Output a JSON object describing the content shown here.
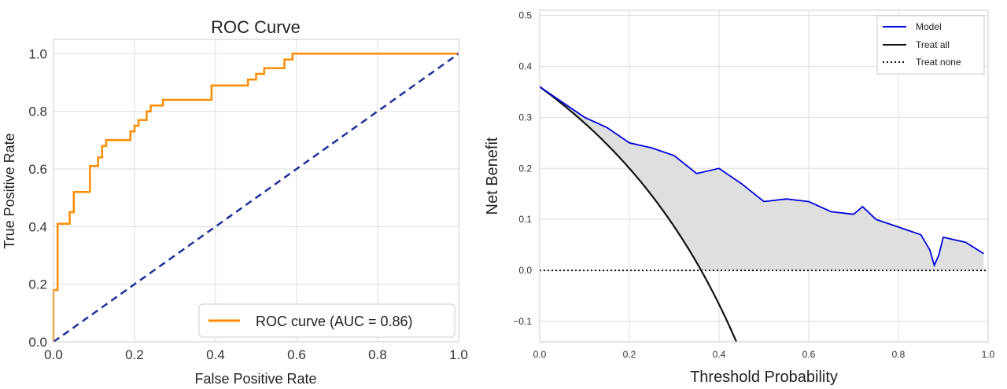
{
  "chart_data": [
    {
      "type": "line",
      "title": "ROC Curve",
      "xlabel": "False Positive Rate",
      "ylabel": "True Positive Rate",
      "xlim": [
        0,
        1
      ],
      "ylim": [
        0,
        1.05
      ],
      "xticks": [
        "0.0",
        "0.2",
        "0.4",
        "0.6",
        "0.8",
        "1.0"
      ],
      "yticks": [
        "0.0",
        "0.2",
        "0.4",
        "0.6",
        "0.8",
        "1.0"
      ],
      "grid": true,
      "legend_position": "bottom-right",
      "series": [
        {
          "name": "ROC curve (AUC = 0.86)",
          "color": "#ff8c00",
          "style": "solid",
          "x": [
            0,
            0,
            0.01,
            0.01,
            0.02,
            0.02,
            0.04,
            0.04,
            0.05,
            0.05,
            0.09,
            0.09,
            0.11,
            0.11,
            0.12,
            0.12,
            0.13,
            0.13,
            0.19,
            0.19,
            0.2,
            0.2,
            0.21,
            0.21,
            0.23,
            0.23,
            0.24,
            0.24,
            0.27,
            0.27,
            0.29,
            0.29,
            0.39,
            0.39,
            0.48,
            0.48,
            0.5,
            0.5,
            0.52,
            0.52,
            0.57,
            0.57,
            0.58,
            0.58,
            0.59,
            0.59,
            1.0
          ],
          "y": [
            0,
            0.18,
            0.18,
            0.41,
            0.41,
            0.41,
            0.41,
            0.45,
            0.45,
            0.52,
            0.52,
            0.61,
            0.61,
            0.64,
            0.64,
            0.68,
            0.68,
            0.7,
            0.7,
            0.73,
            0.73,
            0.75,
            0.75,
            0.77,
            0.77,
            0.8,
            0.8,
            0.82,
            0.82,
            0.84,
            0.84,
            0.84,
            0.84,
            0.89,
            0.89,
            0.91,
            0.91,
            0.93,
            0.93,
            0.95,
            0.95,
            0.98,
            0.98,
            0.98,
            0.98,
            1.0,
            1.0
          ]
        },
        {
          "name": "",
          "color": "#1f2f99",
          "style": "dashed",
          "x": [
            0,
            1
          ],
          "y": [
            0,
            1
          ]
        }
      ]
    },
    {
      "type": "line",
      "title": "",
      "xlabel": "Threshold Probability",
      "ylabel": "Net Benefit",
      "xlim": [
        0,
        1
      ],
      "ylim": [
        -0.14,
        0.51
      ],
      "xticks": [
        "0.0",
        "0.2",
        "0.4",
        "0.6",
        "0.8",
        "1.0"
      ],
      "yticks": [
        "−0.1",
        "0.0",
        "0.1",
        "0.2",
        "0.3",
        "0.4",
        "0.5"
      ],
      "grid": true,
      "legend_position": "top-right",
      "fill_between": {
        "upper": "Model",
        "lower": "Treat all",
        "color": "#d9d9d9"
      },
      "series": [
        {
          "name": "Model",
          "color": "#0000dd",
          "style": "solid",
          "x": [
            0.0,
            0.05,
            0.1,
            0.15,
            0.2,
            0.25,
            0.3,
            0.35,
            0.4,
            0.45,
            0.5,
            0.55,
            0.6,
            0.65,
            0.7,
            0.72,
            0.75,
            0.8,
            0.85,
            0.87,
            0.88,
            0.89,
            0.9,
            0.95,
            0.99
          ],
          "y": [
            0.36,
            0.33,
            0.3,
            0.28,
            0.25,
            0.24,
            0.225,
            0.19,
            0.2,
            0.17,
            0.135,
            0.14,
            0.135,
            0.115,
            0.11,
            0.125,
            0.1,
            0.085,
            0.07,
            0.04,
            0.01,
            0.03,
            0.065,
            0.055,
            0.033
          ]
        },
        {
          "name": "Treat all",
          "color": "#111111",
          "style": "solid",
          "prevalence": 0.36
        },
        {
          "name": "Treat none",
          "color": "#111111",
          "style": "dotted",
          "x": [
            0,
            1
          ],
          "y": [
            0,
            0
          ]
        }
      ]
    }
  ],
  "left_legend": {
    "label": "ROC curve (AUC = 0.86)"
  },
  "right_legend": {
    "items": [
      "Model",
      "Treat all",
      "Treat none"
    ]
  }
}
